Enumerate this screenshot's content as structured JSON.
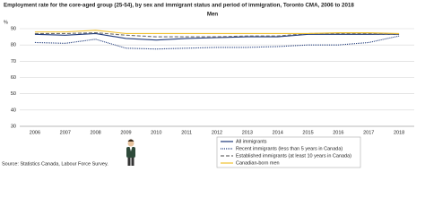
{
  "chart_data": {
    "type": "line",
    "title": "Employment rate for the core-aged group (25-54), by sex and immigrant status and period of immigration, Toronto CMA, 2006 to 2018",
    "subtitle": "Men",
    "y_label": "%",
    "source": "Source: Statistics Canada, Labour Force Survey.",
    "categories": [
      "2006",
      "2007",
      "2008",
      "2009",
      "2010",
      "2011",
      "2012",
      "2013",
      "2014",
      "2015",
      "2016",
      "2017",
      "2018"
    ],
    "series": [
      {
        "name": "All immigrants",
        "color": "#1f3a7a",
        "dash": "solid",
        "values": [
          86.5,
          86,
          87,
          84,
          83,
          84,
          84.5,
          85,
          85,
          86.5,
          86.5,
          86.5,
          86.5
        ]
      },
      {
        "name": "Recent immigrants (less than 5 years in Canada)",
        "color": "#1f3a7a",
        "dash": "dotted",
        "values": [
          81.5,
          81,
          83.5,
          78,
          77.5,
          78,
          78.5,
          78.5,
          79,
          80,
          80,
          81.5,
          85.5
        ]
      },
      {
        "name": "Established immigrants (at least 10 years in Canada)",
        "color": "#6d6d6d",
        "dash": "dashed",
        "values": [
          87,
          87,
          87.5,
          86,
          85,
          85,
          85,
          85.5,
          85.5,
          87,
          87,
          87,
          86.5
        ]
      },
      {
        "name": "Canadian-born men",
        "color": "#f0c030",
        "dash": "solid",
        "values": [
          88,
          88,
          89,
          87,
          87,
          87,
          87,
          87,
          87,
          87,
          87.5,
          87.5,
          87
        ]
      }
    ],
    "ylim": [
      30,
      90
    ],
    "yticks": [
      30,
      40,
      50,
      60,
      70,
      80,
      90
    ],
    "grid": true
  }
}
